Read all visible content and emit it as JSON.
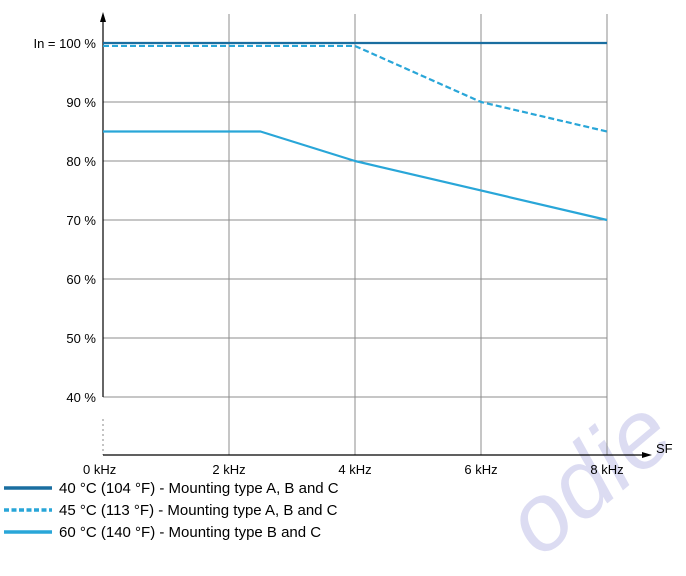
{
  "chart_data": {
    "type": "line",
    "title": "",
    "x_unit": "kHz",
    "x": [
      0,
      2,
      4,
      6,
      8
    ],
    "x_tick_labels": [
      "0 kHz",
      "2 kHz",
      "4 kHz",
      "6 kHz",
      "8 kHz"
    ],
    "xlim": [
      0,
      8
    ],
    "xlabel": "SF",
    "y_unit": "%",
    "y_tick_values": [
      40,
      50,
      60,
      70,
      80,
      90,
      100
    ],
    "y_tick_labels": [
      "40 %",
      "50 %",
      "60 %",
      "70 %",
      "80 %",
      "90 %",
      "In = 100 %"
    ],
    "ylim": [
      30,
      103
    ],
    "ylabel": "",
    "grid": true,
    "legend_position": "bottom-left",
    "series": [
      {
        "name": "40 °C (104 °F) - Mounting type A, B and C",
        "style": "solid",
        "color": "#1a6ea0",
        "points": [
          [
            0,
            100
          ],
          [
            8,
            100
          ]
        ]
      },
      {
        "name": "45 °C (113 °F) - Mounting type A, B and C",
        "style": "dashed",
        "color": "#29a6d8",
        "points": [
          [
            0,
            99.5
          ],
          [
            4,
            99.5
          ],
          [
            6,
            90
          ],
          [
            8,
            85
          ]
        ]
      },
      {
        "name": "60 °C (140 °F) - Mounting type B and C",
        "style": "solid",
        "color": "#29a6d8",
        "points": [
          [
            0,
            85
          ],
          [
            2.5,
            85
          ],
          [
            4,
            80
          ],
          [
            8,
            70
          ]
        ]
      }
    ]
  },
  "watermark": {
    "text": "odie",
    "color": "#dcdcf2"
  }
}
